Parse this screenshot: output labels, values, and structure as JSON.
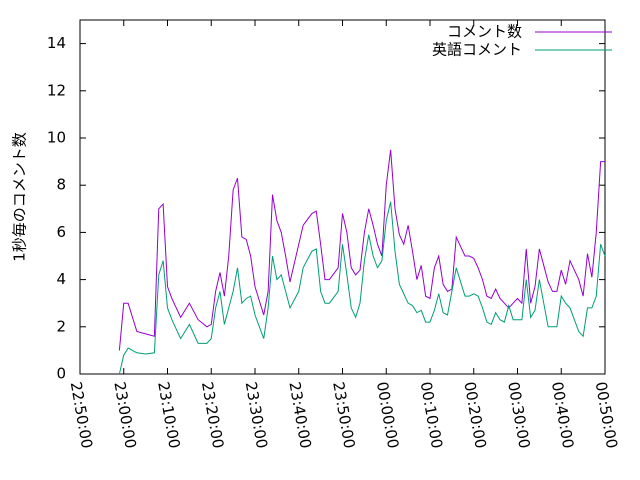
{
  "chart_data": {
    "type": "line",
    "ylabel": "1秒毎のコメント数",
    "x": [
      "22:59:00",
      "23:00:00",
      "23:01:00",
      "23:03:00",
      "23:05:00",
      "23:07:00",
      "23:08:00",
      "23:09:00",
      "23:10:00",
      "23:11:00",
      "23:13:00",
      "23:15:00",
      "23:17:00",
      "23:19:00",
      "23:20:00",
      "23:21:00",
      "23:22:00",
      "23:23:00",
      "23:24:00",
      "23:25:00",
      "23:26:00",
      "23:27:00",
      "23:28:00",
      "23:29:00",
      "23:30:00",
      "23:32:00",
      "23:33:00",
      "23:34:00",
      "23:35:00",
      "23:36:00",
      "23:37:00",
      "23:38:00",
      "23:40:00",
      "23:41:00",
      "23:43:00",
      "23:44:00",
      "23:45:00",
      "23:46:00",
      "23:47:00",
      "23:49:00",
      "23:50:00",
      "23:51:00",
      "23:52:00",
      "23:53:00",
      "23:54:00",
      "23:55:00",
      "23:56:00",
      "23:57:00",
      "23:58:00",
      "23:59:00",
      "00:00:00",
      "00:01:00",
      "00:02:00",
      "00:03:00",
      "00:04:00",
      "00:05:00",
      "00:06:00",
      "00:07:00",
      "00:08:00",
      "00:09:00",
      "00:10:00",
      "00:11:00",
      "00:12:00",
      "00:13:00",
      "00:14:00",
      "00:15:00",
      "00:16:00",
      "00:18:00",
      "00:19:00",
      "00:20:00",
      "00:21:00",
      "00:22:00",
      "00:23:00",
      "00:24:00",
      "00:25:00",
      "00:26:00",
      "00:27:00",
      "00:28:00",
      "00:29:00",
      "00:30:00",
      "00:31:00",
      "00:32:00",
      "00:33:00",
      "00:34:00",
      "00:35:00",
      "00:36:00",
      "00:37:00",
      "00:38:00",
      "00:39:00",
      "00:40:00",
      "00:41:00",
      "00:42:00",
      "00:44:00",
      "00:45:00",
      "00:46:00",
      "00:47:00",
      "00:48:00",
      "00:49:00",
      "00:50:00"
    ],
    "series": [
      {
        "name": "コメント数",
        "color": "#9400d3",
        "values": [
          1.0,
          3.0,
          3.0,
          1.8,
          1.7,
          1.6,
          7.0,
          7.2,
          3.7,
          3.2,
          2.4,
          3.0,
          2.3,
          2.0,
          2.1,
          3.5,
          4.3,
          3.3,
          5.0,
          7.8,
          8.3,
          5.8,
          5.7,
          5.0,
          3.7,
          2.5,
          3.5,
          7.6,
          6.5,
          6.0,
          5.0,
          3.9,
          5.5,
          6.3,
          6.8,
          6.9,
          5.5,
          4.0,
          4.0,
          4.5,
          6.8,
          6.0,
          4.5,
          4.2,
          4.4,
          6.0,
          7.0,
          6.3,
          5.5,
          5.0,
          8.0,
          9.5,
          7.0,
          5.9,
          5.5,
          6.3,
          5.2,
          4.0,
          4.6,
          3.3,
          3.2,
          4.5,
          5.0,
          3.8,
          3.5,
          3.6,
          5.8,
          5.0,
          5.0,
          4.9,
          4.5,
          4.0,
          3.3,
          3.2,
          3.6,
          3.2,
          3.0,
          2.8,
          3.0,
          3.2,
          3.0,
          5.3,
          3.0,
          3.7,
          5.3,
          4.6,
          3.9,
          3.5,
          3.5,
          4.4,
          3.8,
          4.8,
          4.0,
          3.3,
          5.1,
          4.1,
          6.0,
          9.0,
          9.0
        ]
      },
      {
        "name": "英語コメント",
        "color": "#009e73",
        "values": [
          0.0,
          0.8,
          1.1,
          0.9,
          0.85,
          0.9,
          4.2,
          4.8,
          2.8,
          2.3,
          1.5,
          2.1,
          1.3,
          1.3,
          1.5,
          2.8,
          3.5,
          2.1,
          2.8,
          3.5,
          4.5,
          3.0,
          3.2,
          3.3,
          2.5,
          1.5,
          2.8,
          5.0,
          4.0,
          4.2,
          3.5,
          2.8,
          3.5,
          4.5,
          5.2,
          5.3,
          3.5,
          3.0,
          3.0,
          3.5,
          5.5,
          4.2,
          2.8,
          2.4,
          3.0,
          4.8,
          5.9,
          5.0,
          4.5,
          4.8,
          6.5,
          7.3,
          5.2,
          3.8,
          3.4,
          3.0,
          2.9,
          2.6,
          2.7,
          2.2,
          2.2,
          2.7,
          3.4,
          2.6,
          2.5,
          3.5,
          4.5,
          3.3,
          3.3,
          3.4,
          3.3,
          2.8,
          2.2,
          2.1,
          2.6,
          2.3,
          2.2,
          2.9,
          2.3,
          2.3,
          2.3,
          4.0,
          2.4,
          2.7,
          4.0,
          3.0,
          2.0,
          2.0,
          2.0,
          3.3,
          3.0,
          2.8,
          1.8,
          1.6,
          2.8,
          2.8,
          3.3,
          5.5,
          5.0
        ]
      }
    ],
    "xlim": [
      "22:50:00",
      "00:50:00"
    ],
    "xticks": [
      "22:50:00",
      "23:00:00",
      "23:10:00",
      "23:20:00",
      "23:30:00",
      "23:40:00",
      "23:50:00",
      "00:00:00",
      "00:10:00",
      "00:20:00",
      "00:30:00",
      "00:40:00",
      "00:50:00"
    ],
    "ylim": [
      0,
      15
    ],
    "yticks": [
      0,
      2,
      4,
      6,
      8,
      10,
      12,
      14
    ],
    "legend": "upper right",
    "grid": false
  }
}
